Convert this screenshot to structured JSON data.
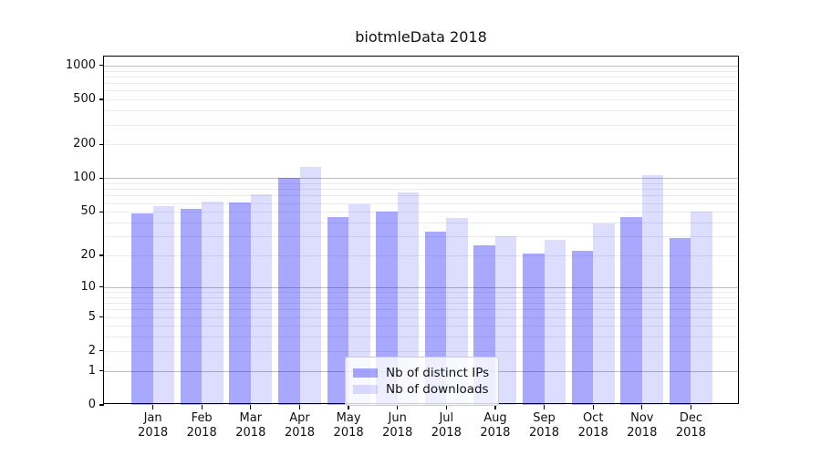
{
  "chart_data": {
    "type": "bar",
    "title": "biotmleData 2018",
    "categories": [
      "Jan",
      "Feb",
      "Mar",
      "Apr",
      "May",
      "Jun",
      "Jul",
      "Aug",
      "Sep",
      "Oct",
      "Nov",
      "Dec"
    ],
    "x_tick_year_line": "2018",
    "series": [
      {
        "name": "Nb of distinct IPs",
        "color": "rgba(0,0,255,0.34)",
        "values": [
          48,
          53,
          61,
          100,
          45,
          50,
          33,
          25,
          21,
          22,
          45,
          29
        ]
      },
      {
        "name": "Nb of downloads",
        "color": "rgba(0,0,255,0.135)",
        "values": [
          56,
          62,
          72,
          126,
          58,
          74,
          44,
          30,
          28,
          39,
          106,
          50
        ]
      }
    ],
    "y_scale": "log1p",
    "y_ticks": [
      0,
      1,
      2,
      5,
      10,
      20,
      50,
      100,
      200,
      500,
      1000
    ],
    "y_major_gridlines": [
      1,
      10,
      100,
      1000
    ],
    "ylim": [
      0,
      1200
    ],
    "grid": "on",
    "legend_position": "lower center"
  }
}
